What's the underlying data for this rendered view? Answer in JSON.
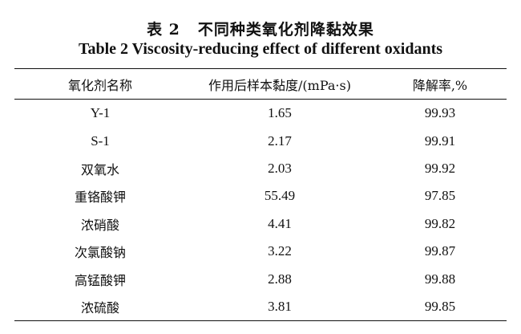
{
  "caption": {
    "label_cn": "表 2",
    "title_cn": "不同种类氧化剂降黏效果",
    "title_en": "Table 2 Viscosity-reducing effect of different oxidants"
  },
  "table": {
    "headers": [
      "氧化剂名称",
      "作用后样本黏度/(mPa·s)",
      "降解率,%"
    ],
    "rows": [
      [
        "Y-1",
        "1.65",
        "99.93"
      ],
      [
        "S-1",
        "2.17",
        "99.91"
      ],
      [
        "双氧水",
        "2.03",
        "99.92"
      ],
      [
        "重铬酸钾",
        "55.49",
        "97.85"
      ],
      [
        "浓硝酸",
        "4.41",
        "99.82"
      ],
      [
        "次氯酸钠",
        "3.22",
        "99.87"
      ],
      [
        "高锰酸钾",
        "2.88",
        "99.88"
      ],
      [
        "浓硫酸",
        "3.81",
        "99.85"
      ]
    ]
  }
}
